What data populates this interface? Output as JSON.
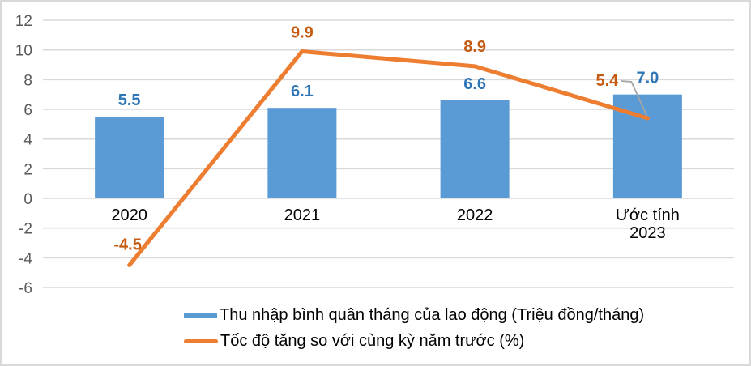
{
  "chart_data": {
    "type": "combo_bar_line",
    "title": "",
    "categories": [
      "2020",
      "2021",
      "2022",
      "Ước tính 2023"
    ],
    "category_lines": [
      [
        "2020"
      ],
      [
        "2021"
      ],
      [
        "2022"
      ],
      [
        "Ước tính",
        "2023"
      ]
    ],
    "series": [
      {
        "name": "Thu nhập bình quân tháng của lao động (Triệu đồng/tháng)",
        "type": "bar",
        "values": [
          5.5,
          6.1,
          6.6,
          7.0
        ],
        "labels": [
          "5.5",
          "6.1",
          "6.6",
          "7.0"
        ],
        "color": "#5B9BD5",
        "label_color": "#2E75B6"
      },
      {
        "name": "Tốc độ tăng  so với cùng kỳ năm trước (%)",
        "type": "line",
        "values": [
          -4.5,
          9.9,
          8.9,
          5.4
        ],
        "labels": [
          "-4.5",
          "9.9",
          "8.9",
          "5.4"
        ],
        "color": "#ED7D31",
        "label_color": "#C55A11",
        "label_offsets": [
          [
            -2,
            -19
          ],
          [
            0,
            -17
          ],
          [
            0,
            -18
          ],
          [
            -50,
            -40
          ]
        ],
        "last_label_has_leader": true
      }
    ],
    "y_axis": {
      "min": -6,
      "max": 12,
      "step": 2,
      "tick_labels": [
        "12",
        "10",
        "8",
        "6",
        "4",
        "2",
        "0",
        "-2",
        "-4",
        "-6"
      ],
      "tick_color": "#595959"
    },
    "grid": {
      "show": true,
      "color": "#D9D9D9"
    },
    "legend_position": "bottom-left",
    "category_label_color": "#000000",
    "leader_line_color": "#A6A6A6",
    "background": "#FFFFFF",
    "frame_color": "#D9D9D9"
  }
}
